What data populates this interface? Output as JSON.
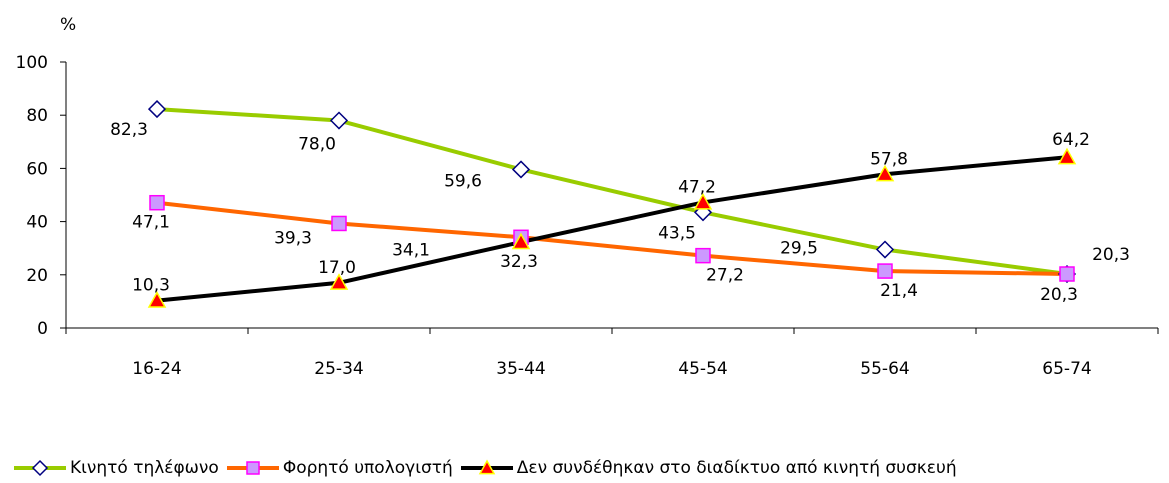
{
  "chart_data": {
    "type": "line",
    "title": "",
    "ylabel": "%",
    "xlabel": "",
    "categories": [
      "16-24",
      "25-34",
      "35-44",
      "45-54",
      "55-64",
      "65-74"
    ],
    "ylim": [
      0,
      100
    ],
    "yticks": [
      "0",
      "20",
      "40",
      "60",
      "80",
      "100"
    ],
    "grid": false,
    "legend_position": "bottom",
    "series": [
      {
        "name": "Κινητό τηλέφωνο",
        "values": [
          82.3,
          78.0,
          59.6,
          43.5,
          29.5,
          20.3
        ],
        "labels": [
          "82,3",
          "78,0",
          "59,6",
          "43,5",
          "29,5",
          "20,3"
        ],
        "color": "#99cc00",
        "marker": "diamond",
        "marker_fill": "#ffffff",
        "marker_stroke": "#000080"
      },
      {
        "name": "Φορητό υπολογιστή",
        "values": [
          47.1,
          39.3,
          34.1,
          27.2,
          21.4,
          20.3
        ],
        "labels": [
          "47,1",
          "39,3",
          "34,1",
          "27,2",
          "21,4",
          "20,3"
        ],
        "color": "#ff6600",
        "marker": "square",
        "marker_fill": "#cc99ff",
        "marker_stroke": "#ff00ff"
      },
      {
        "name": "Δεν συνδέθηκαν στο διαδίκτυο από κινητή συσκευή",
        "values": [
          10.3,
          17.0,
          32.3,
          47.2,
          57.8,
          64.2
        ],
        "labels": [
          "10,3",
          "17,0",
          "32,3",
          "47,2",
          "57,8",
          "64,2"
        ],
        "color": "#000000",
        "marker": "triangle",
        "marker_fill": "#ff0000",
        "marker_stroke": "#ffff00"
      }
    ]
  }
}
